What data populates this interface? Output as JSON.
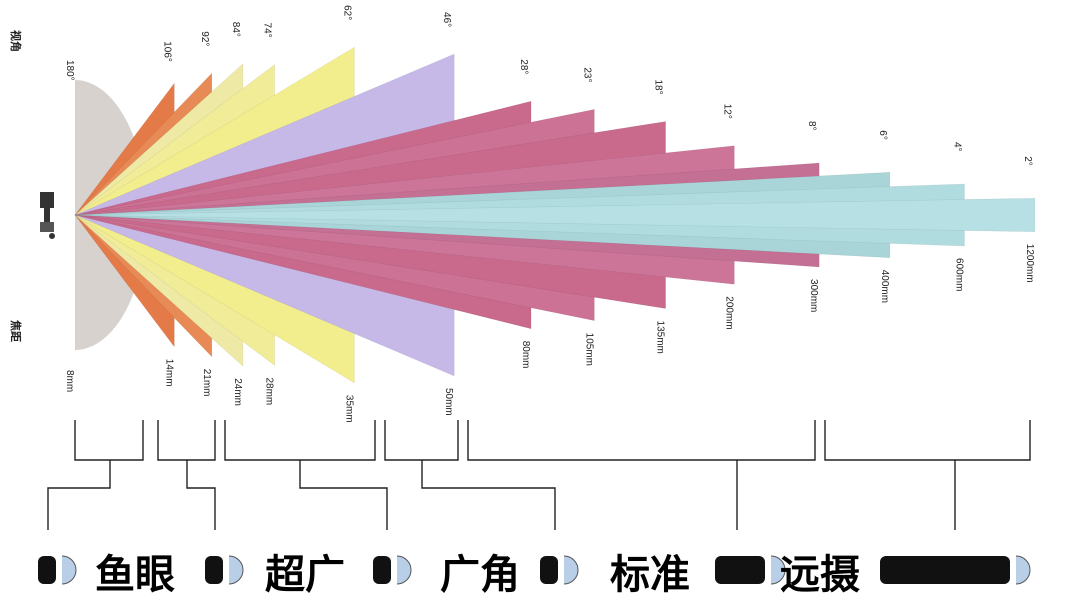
{
  "side_labels": {
    "angle": "视角",
    "focal": "焦距"
  },
  "icons": {
    "camera": "camera-icon",
    "lens": "lens-icon"
  },
  "wedges": [
    {
      "angle": "180°",
      "focal": "8mm",
      "deg": 180,
      "color": "#d8d2cf"
    },
    {
      "angle": "106°",
      "focal": "14mm",
      "deg": 106,
      "color": "#e47a48"
    },
    {
      "angle": "92°",
      "focal": "21mm",
      "deg": 92,
      "color": "#e88a55"
    },
    {
      "angle": "84°",
      "focal": "24mm",
      "deg": 84,
      "color": "#eeeaa6"
    },
    {
      "angle": "74°",
      "focal": "28mm",
      "deg": 74,
      "color": "#f0ec98"
    },
    {
      "angle": "62°",
      "focal": "35mm",
      "deg": 62,
      "color": "#f2ee8e"
    },
    {
      "angle": "46°",
      "focal": "50mm",
      "deg": 46,
      "color": "#c6b9e8"
    },
    {
      "angle": "28°",
      "focal": "80mm",
      "deg": 28,
      "color": "#c9698c"
    },
    {
      "angle": "23°",
      "focal": "105mm",
      "deg": 23,
      "color": "#cc7294"
    },
    {
      "angle": "18°",
      "focal": "135mm",
      "deg": 18,
      "color": "#c96a8d"
    },
    {
      "angle": "12°",
      "focal": "200mm",
      "deg": 12,
      "color": "#cc7598"
    },
    {
      "angle": "8°",
      "focal": "300mm",
      "deg": 8,
      "color": "#c46f94"
    },
    {
      "angle": "6°",
      "focal": "400mm",
      "deg": 6,
      "color": "#a9d5d8"
    },
    {
      "angle": "4°",
      "focal": "600mm",
      "deg": 4,
      "color": "#b0dce0"
    },
    {
      "angle": "2°",
      "focal": "1200mm",
      "deg": 2,
      "color": "#b6e0e4"
    }
  ],
  "categories": [
    "鱼眼",
    "超广",
    "广角",
    "标准",
    "远摄"
  ]
}
